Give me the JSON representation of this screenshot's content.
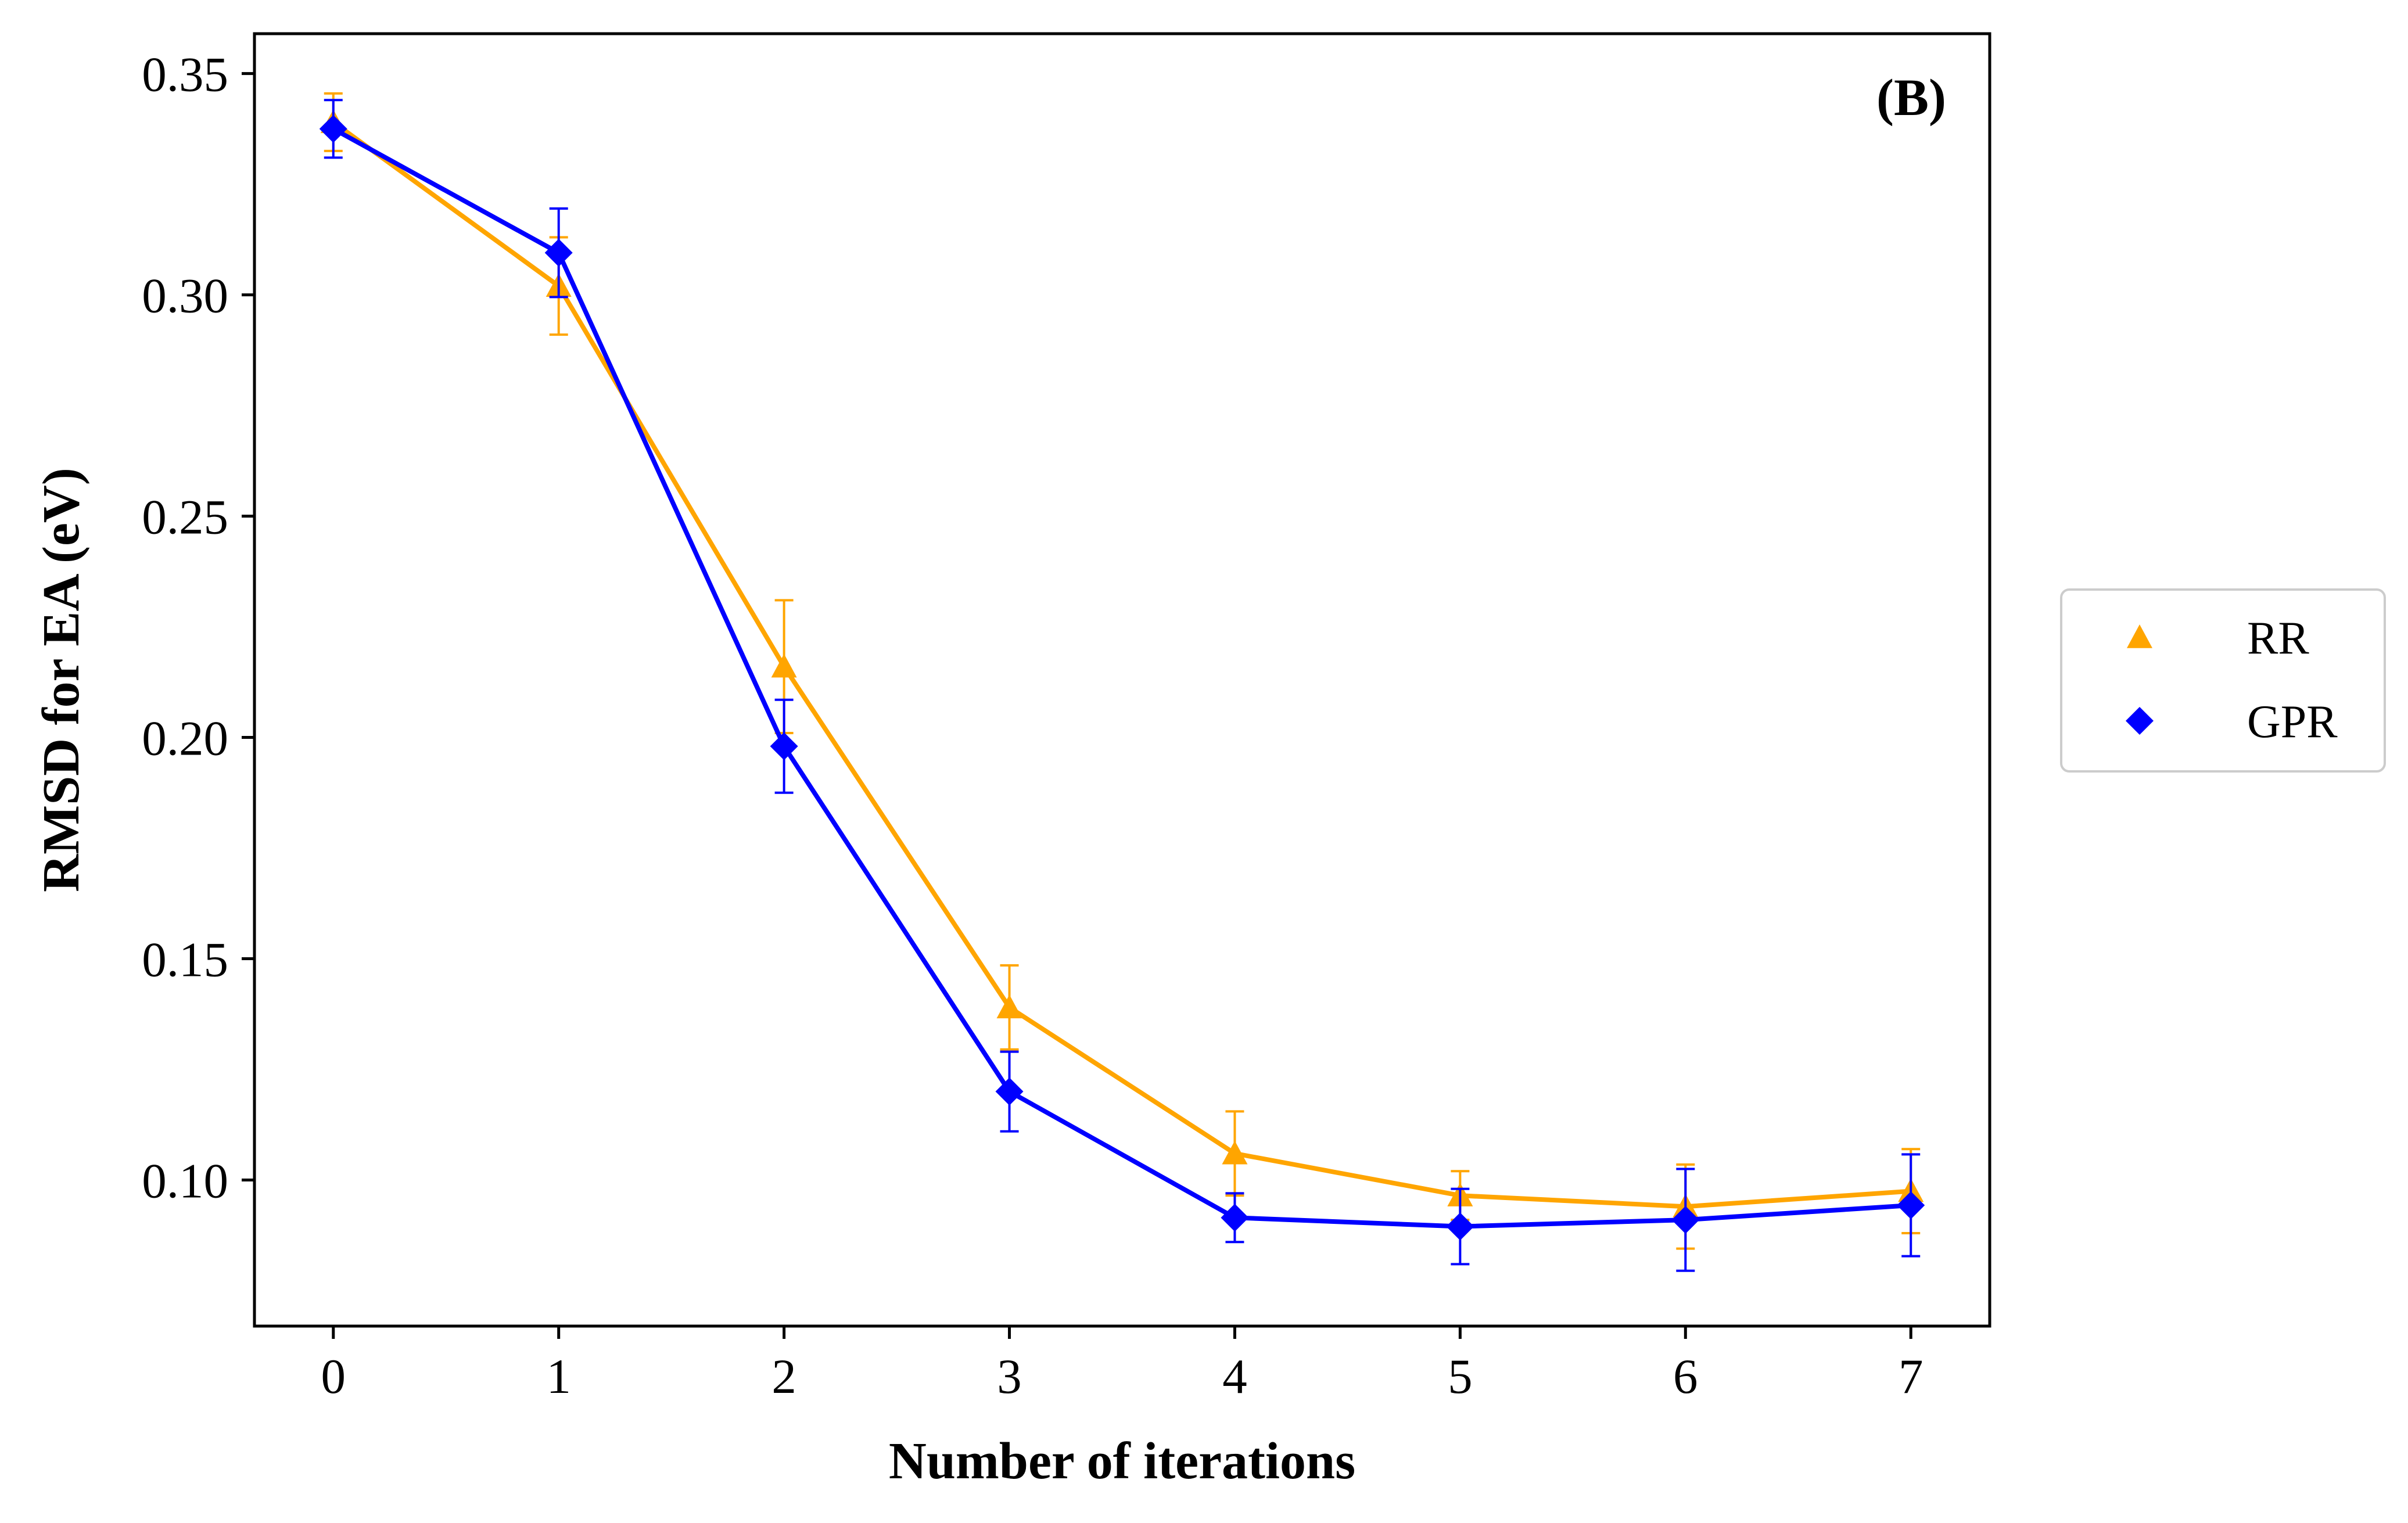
{
  "chart_data": {
    "type": "line",
    "panel_label": "(B)",
    "xlabel": "Number of iterations",
    "ylabel": "RMSD for EA (eV)",
    "x": [
      0,
      1,
      2,
      3,
      4,
      5,
      6,
      7
    ],
    "xlim": [
      -0.35,
      7.35
    ],
    "ylim": [
      0.067,
      0.359
    ],
    "xticks": [
      0,
      1,
      2,
      3,
      4,
      5,
      6,
      7
    ],
    "yticks": [
      0.1,
      0.15,
      0.2,
      0.25,
      0.3,
      0.35
    ],
    "ytick_labels": [
      "0.10",
      "0.15",
      "0.20",
      "0.25",
      "0.30",
      "0.35"
    ],
    "grid": false,
    "legend_position": "right, outside plot",
    "series": [
      {
        "name": "RR",
        "color": "#FFA500",
        "marker": "triangle",
        "values": [
          0.339,
          0.302,
          0.216,
          0.139,
          0.106,
          0.0965,
          0.094,
          0.0975
        ],
        "error": [
          0.0065,
          0.011,
          0.015,
          0.0095,
          0.0095,
          0.0055,
          0.0095,
          0.0095
        ]
      },
      {
        "name": "GPR",
        "color": "#0000FF",
        "marker": "diamond",
        "values": [
          0.3375,
          0.3095,
          0.198,
          0.12,
          0.0915,
          0.0895,
          0.091,
          0.0943
        ],
        "error": [
          0.0065,
          0.01,
          0.0105,
          0.009,
          0.0055,
          0.0085,
          0.0115,
          0.0115
        ]
      }
    ]
  }
}
